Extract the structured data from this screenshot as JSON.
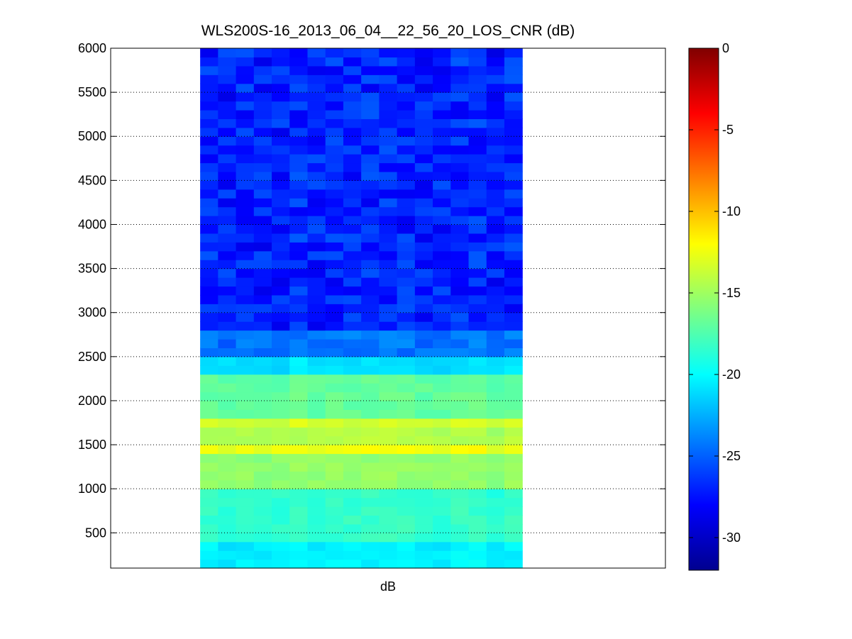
{
  "chart_data": {
    "type": "heatmap",
    "title": "WLS200S-16_2013_06_04__22_56_20_LOS_CNR (dB)",
    "xlabel": "dB",
    "ylabel": "",
    "x_range": [
      0,
      31
    ],
    "data_x_range": [
      5,
      23
    ],
    "ylim": [
      100,
      6000
    ],
    "yticks": [
      500,
      1000,
      1500,
      2000,
      2500,
      3000,
      3500,
      4000,
      4500,
      5000,
      5500,
      6000
    ],
    "grid": "dotted horizontal at y ticks",
    "colormap": "jet",
    "colorbar": {
      "range": [
        -32,
        0
      ],
      "ticks": [
        0,
        -5,
        -10,
        -15,
        -20,
        -25,
        -30
      ],
      "position": "right"
    },
    "num_columns": 18,
    "range_gate_spacing": 100,
    "cnr_profile": {
      "description": "approximate CNR (dB) per range band, with small column-to-column noise",
      "bands": [
        {
          "from": 100,
          "to": 400,
          "cnr": -20.5
        },
        {
          "from": 400,
          "to": 1000,
          "cnr": -18.5
        },
        {
          "from": 1000,
          "to": 1400,
          "cnr": -15.5
        },
        {
          "from": 1400,
          "to": 1550,
          "cnr": -12.5
        },
        {
          "from": 1550,
          "to": 1700,
          "cnr": -14.5
        },
        {
          "from": 1700,
          "to": 1800,
          "cnr": -13.5
        },
        {
          "from": 1800,
          "to": 2300,
          "cnr": -17
        },
        {
          "from": 2300,
          "to": 2500,
          "cnr": -21
        },
        {
          "from": 2500,
          "to": 2800,
          "cnr": -24.5
        },
        {
          "from": 2800,
          "to": 6000,
          "cnr": -27
        }
      ]
    }
  }
}
